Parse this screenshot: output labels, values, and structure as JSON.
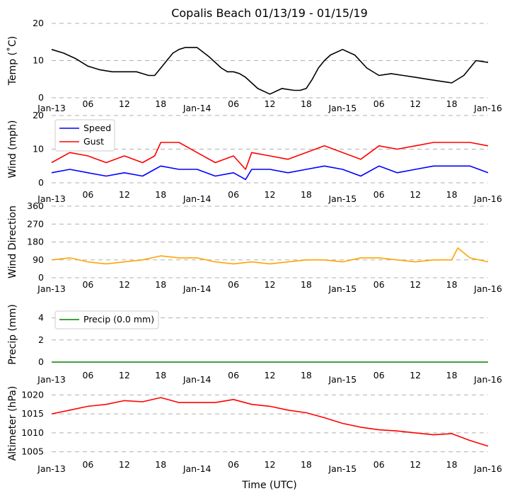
{
  "title": "Copalis Beach 01/13/19 - 01/15/19",
  "xlabel": "Time (UTC)",
  "x_tick_labels": [
    "Jan-13",
    "06",
    "12",
    "18",
    "Jan-14",
    "06",
    "12",
    "18",
    "Jan-15",
    "06",
    "12",
    "18",
    "Jan-16"
  ],
  "x_range_hours": [
    0,
    72
  ],
  "chart_data": [
    {
      "type": "line",
      "ylabel": "Temp (˚C)",
      "ylim": [
        0,
        20
      ],
      "yticks": [
        0,
        10,
        20
      ],
      "grid": true,
      "legend": null,
      "x_hours": [
        0,
        2,
        4,
        6,
        8,
        10,
        12,
        14,
        15,
        16,
        17,
        18,
        19,
        20,
        21,
        22,
        24,
        26,
        28,
        29,
        30,
        31,
        32,
        33,
        34,
        36,
        38,
        40,
        41,
        42,
        43,
        44,
        45,
        46,
        48,
        50,
        52,
        54,
        56,
        58,
        60,
        62,
        64,
        66,
        68,
        70,
        72
      ],
      "series": [
        {
          "name": "",
          "color": "#000000",
          "values": [
            13,
            12,
            10.5,
            8.5,
            7.5,
            7,
            7,
            7,
            6.5,
            6,
            6,
            8,
            10,
            12,
            13,
            13.5,
            13.5,
            11,
            8,
            7,
            7,
            6.5,
            5.5,
            4,
            2.5,
            1,
            2.5,
            2,
            2,
            2.5,
            5,
            8,
            10,
            11.5,
            13,
            11.5,
            8,
            6,
            6.5,
            6,
            5.5,
            5,
            4.5,
            4,
            6,
            10,
            9.5
          ]
        }
      ]
    },
    {
      "type": "line",
      "ylabel": "Wind (mph)",
      "ylim": [
        0,
        20
      ],
      "yticks": [
        0,
        10,
        20
      ],
      "grid": true,
      "legend": "top-left",
      "x_hours": [
        0,
        3,
        6,
        9,
        12,
        15,
        17,
        18,
        21,
        24,
        27,
        30,
        32,
        33,
        36,
        39,
        42,
        45,
        48,
        51,
        54,
        57,
        60,
        63,
        66,
        69,
        72
      ],
      "series": [
        {
          "name": "Speed",
          "color": "#0000ff",
          "values": [
            3,
            4,
            3,
            2,
            3,
            2,
            4,
            5,
            4,
            4,
            2,
            3,
            1,
            4,
            4,
            3,
            4,
            5,
            4,
            2,
            5,
            3,
            4,
            5,
            5,
            5,
            3
          ]
        },
        {
          "name": "Gust",
          "color": "#ff0000",
          "values": [
            6,
            9,
            8,
            6,
            8,
            6,
            8,
            12,
            12,
            9,
            6,
            8,
            4,
            9,
            8,
            7,
            9,
            11,
            9,
            7,
            11,
            10,
            11,
            12,
            12,
            12,
            11
          ]
        }
      ]
    },
    {
      "type": "line",
      "ylabel": "Wind Direction",
      "ylim": [
        0,
        360
      ],
      "yticks": [
        0,
        90,
        180,
        270,
        360
      ],
      "grid": true,
      "legend": null,
      "x_hours": [
        0,
        3,
        6,
        9,
        12,
        15,
        18,
        21,
        24,
        27,
        30,
        33,
        36,
        39,
        42,
        45,
        48,
        51,
        54,
        57,
        60,
        63,
        66,
        67,
        69,
        72
      ],
      "series": [
        {
          "name": "",
          "color": "#ffa500",
          "values": [
            90,
            100,
            80,
            70,
            80,
            90,
            110,
            100,
            100,
            80,
            70,
            80,
            70,
            80,
            90,
            90,
            80,
            100,
            100,
            90,
            80,
            90,
            90,
            150,
            100,
            80
          ]
        }
      ]
    },
    {
      "type": "line",
      "ylabel": "Precip (mm)",
      "ylim": [
        0,
        5
      ],
      "yticks": [
        0,
        2,
        4
      ],
      "grid": true,
      "legend": "top-left",
      "x_hours": [
        0,
        72
      ],
      "series": [
        {
          "name": "Precip (0.0 mm)",
          "color": "#008000",
          "values": [
            0,
            0
          ]
        }
      ]
    },
    {
      "type": "line",
      "ylabel": "Altimeter (hPa)",
      "ylim": [
        1004,
        1021
      ],
      "yticks": [
        1005,
        1010,
        1015,
        1020
      ],
      "grid": true,
      "legend": null,
      "x_hours": [
        0,
        3,
        6,
        9,
        12,
        15,
        18,
        21,
        24,
        27,
        30,
        33,
        36,
        39,
        42,
        45,
        48,
        51,
        54,
        57,
        60,
        63,
        66,
        69,
        72
      ],
      "series": [
        {
          "name": "",
          "color": "#ff0000",
          "values": [
            1015,
            1016,
            1017,
            1017.5,
            1018.5,
            1018.2,
            1019.3,
            1018,
            1018,
            1018,
            1018.8,
            1017.5,
            1017,
            1016,
            1015.3,
            1014,
            1012.5,
            1011.5,
            1010.8,
            1010.5,
            1010,
            1009.5,
            1009.8,
            1008,
            1006.5
          ]
        }
      ]
    }
  ]
}
